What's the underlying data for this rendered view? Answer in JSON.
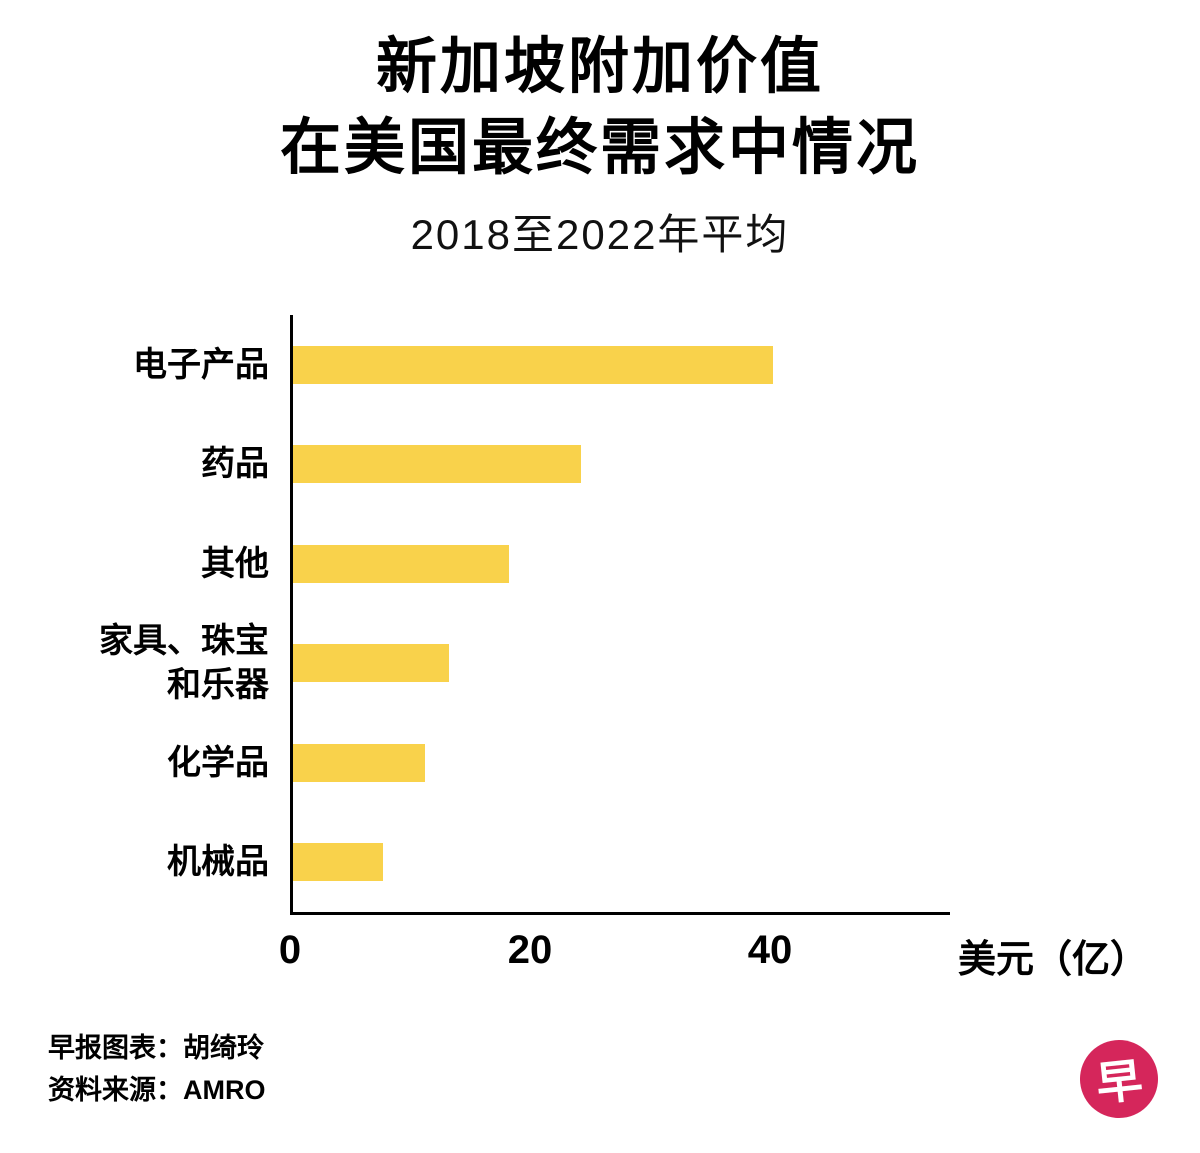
{
  "header": {
    "title_line1": "新加坡附加价值",
    "title_line2": "在美国最终需求中情况",
    "subtitle": "2018至2022年平均"
  },
  "chart_data": {
    "type": "bar",
    "orientation": "horizontal",
    "title": "新加坡附加价值在美国最终需求中情况",
    "subtitle": "2018至2022年平均",
    "categories": [
      "电子产品",
      "药品",
      "其他",
      "家具、珠宝\n和乐器",
      "化学品",
      "机械品"
    ],
    "values": [
      40,
      24,
      18,
      13,
      11,
      7.5
    ],
    "x_ticks": [
      0,
      20,
      40
    ],
    "x_axis_label": "美元（亿）",
    "xlim": [
      0,
      55
    ],
    "grid": false,
    "legend": "none",
    "bar_color": "#f9d24b",
    "axis_color": "#000000"
  },
  "footer": {
    "credit": "早报图表：胡绮玲",
    "source": "资料来源：AMRO",
    "logo_char": "早",
    "logo_color": "#d5265b"
  }
}
